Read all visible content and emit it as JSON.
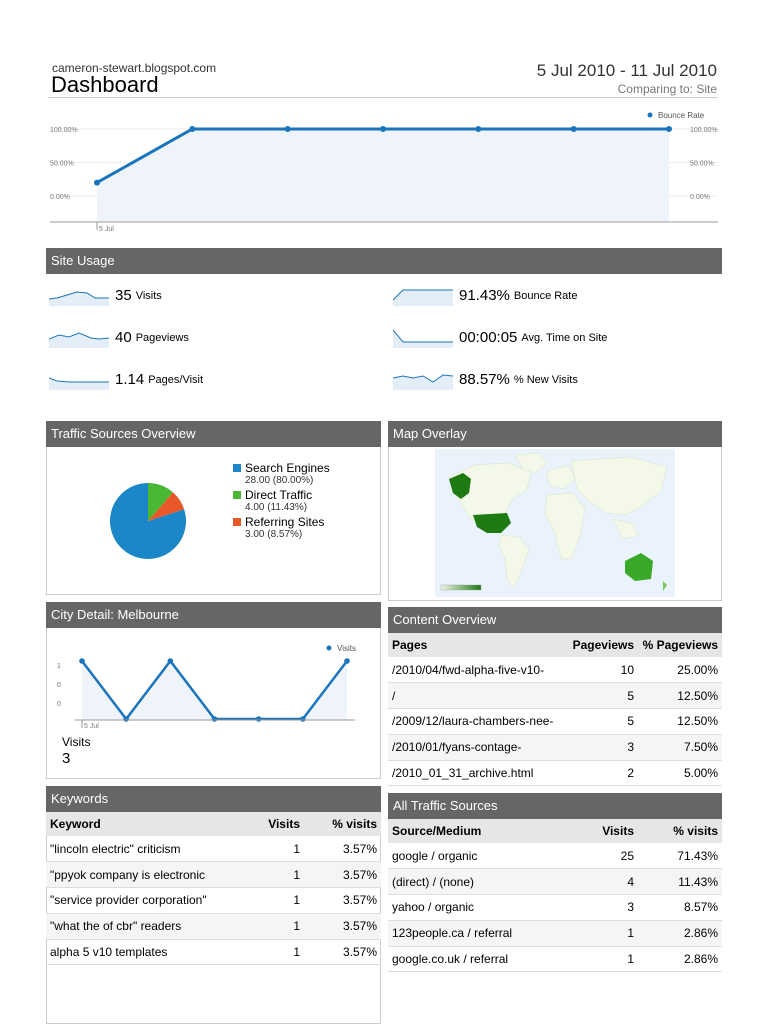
{
  "header": {
    "site": "cameron-stewart.blogspot.com",
    "title": "Dashboard",
    "date_range": "5 Jul 2010 - 11 Jul 2010",
    "comparing": "Comparing to: Site"
  },
  "main_chart": {
    "chart_data": {
      "type": "line",
      "legend": "Bounce Rate",
      "x_label": "5 Jul",
      "y_ticks": [
        "100.00%",
        "50.00%",
        "0.00%"
      ],
      "values": [
        20,
        100,
        100,
        100,
        100,
        100,
        100
      ],
      "ylim": [
        0,
        100
      ],
      "color": "#1b75bc"
    }
  },
  "site_usage": {
    "title": "Site Usage",
    "metrics": [
      {
        "value": "35",
        "label": "Visits"
      },
      {
        "value": "91.43%",
        "label": "Bounce Rate"
      },
      {
        "value": "40",
        "label": "Pageviews"
      },
      {
        "value": "00:00:05",
        "label": "Avg. Time on Site"
      },
      {
        "value": "1.14",
        "label": "Pages/Visit"
      },
      {
        "value": "88.57%",
        "label": "% New Visits"
      }
    ]
  },
  "traffic_sources": {
    "title": "Traffic Sources Overview",
    "chart_data": {
      "type": "pie",
      "slices": [
        {
          "name": "Search Engines",
          "value": 28.0,
          "detail": "28.00 (80.00%)",
          "color": "#1b87c9"
        },
        {
          "name": "Direct Traffic",
          "value": 4.0,
          "detail": "4.00 (11.43%)",
          "color": "#4ab834"
        },
        {
          "name": "Referring Sites",
          "value": 3.0,
          "detail": "3.00 (8.57%)",
          "color": "#e8582a"
        }
      ]
    }
  },
  "map_overlay": {
    "title": "Map Overlay"
  },
  "city_detail": {
    "title": "City Detail: Melbourne",
    "visits_label": "Visits",
    "visits_value": "3",
    "chart_data": {
      "type": "line",
      "legend": "Visits",
      "x_label": "5 Jul",
      "y_ticks": [
        "1",
        "0",
        "0"
      ],
      "values": [
        1,
        0,
        1,
        0,
        0,
        0,
        1
      ],
      "ylim": [
        0,
        1
      ],
      "color": "#1b75bc"
    }
  },
  "content_overview": {
    "title": "Content Overview",
    "headers": [
      "Pages",
      "Pageviews",
      "% Pageviews"
    ],
    "rows": [
      [
        "/2010/04/fwd-alpha-five-v10-",
        "10",
        "25.00%"
      ],
      [
        "/",
        "5",
        "12.50%"
      ],
      [
        "/2009/12/laura-chambers-nee-",
        "5",
        "12.50%"
      ],
      [
        "/2010/01/fyans-contage-",
        "3",
        "7.50%"
      ],
      [
        "/2010_01_31_archive.html",
        "2",
        "5.00%"
      ]
    ]
  },
  "keywords": {
    "title": "Keywords",
    "headers": [
      "Keyword",
      "Visits",
      "% visits"
    ],
    "rows": [
      [
        "\"lincoln electric\" criticism",
        "1",
        "3.57%"
      ],
      [
        "\"ppyok company is electronic",
        "1",
        "3.57%"
      ],
      [
        "\"service provider corporation\"",
        "1",
        "3.57%"
      ],
      [
        "\"what the of cbr\" readers",
        "1",
        "3.57%"
      ],
      [
        "alpha 5 v10 templates",
        "1",
        "3.57%"
      ]
    ]
  },
  "all_traffic": {
    "title": "All Traffic Sources",
    "headers": [
      "Source/Medium",
      "Visits",
      "% visits"
    ],
    "rows": [
      [
        "google / organic",
        "25",
        "71.43%"
      ],
      [
        "(direct) / (none)",
        "4",
        "11.43%"
      ],
      [
        "yahoo / organic",
        "3",
        "8.57%"
      ],
      [
        "123people.ca / referral",
        "1",
        "2.86%"
      ],
      [
        "google.co.uk / referral",
        "1",
        "2.86%"
      ]
    ]
  }
}
